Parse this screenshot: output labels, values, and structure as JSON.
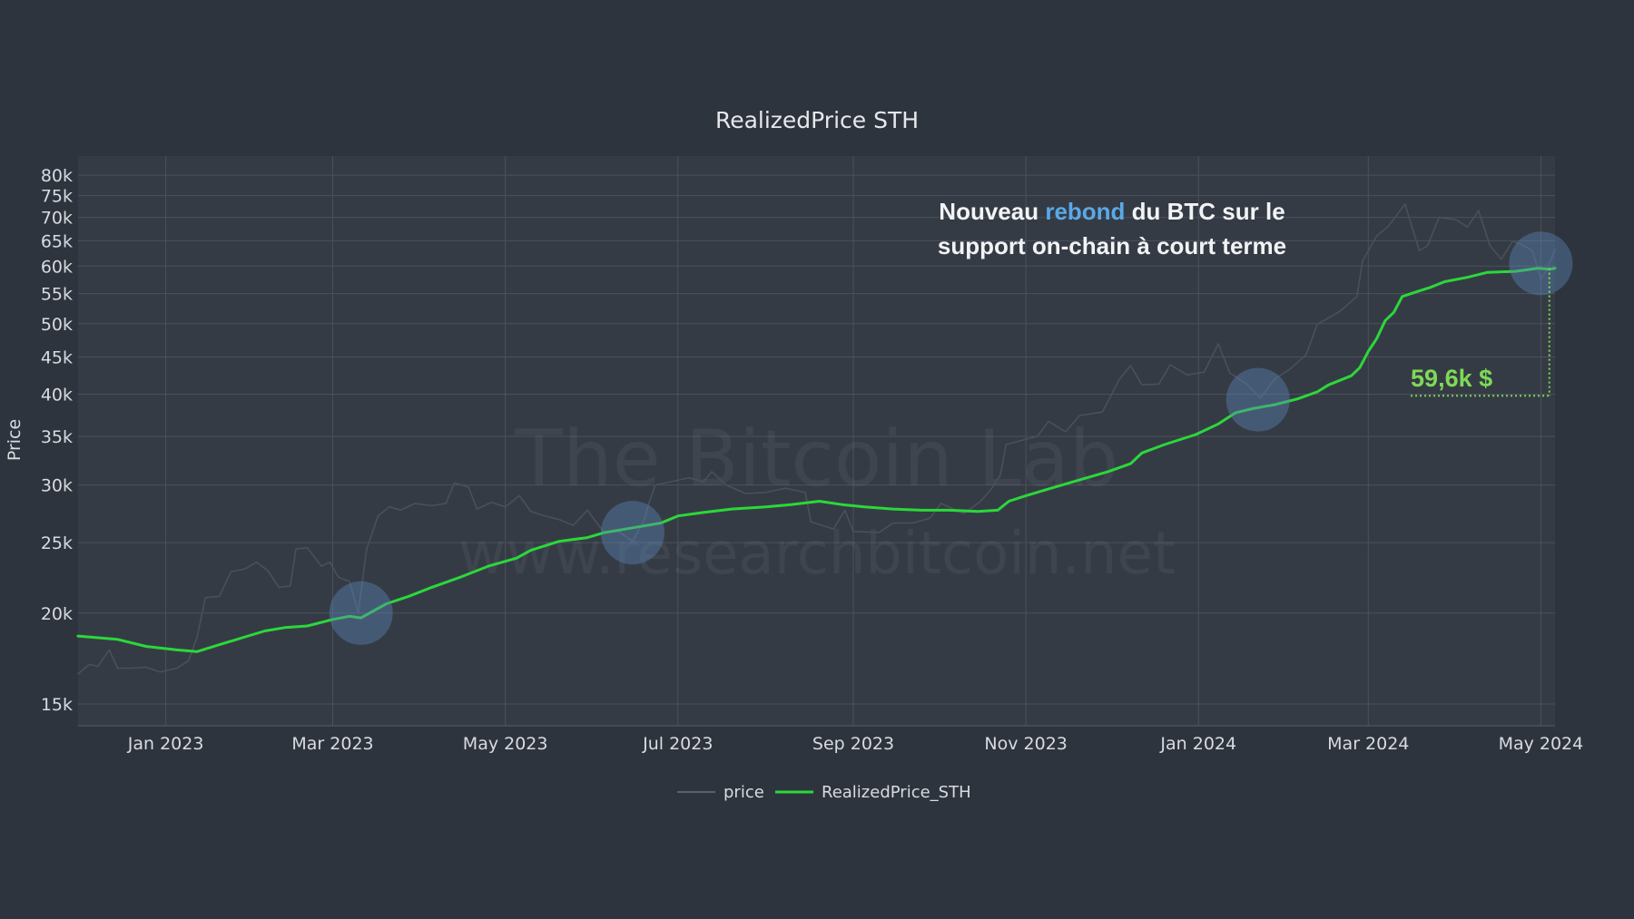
{
  "chart_data": {
    "type": "line",
    "title": "RealizedPrice STH",
    "ylabel": "Price",
    "xlabel": "",
    "yscale": "log",
    "ylim": [
      14000,
      85000
    ],
    "xlim": [
      "2022-12-01",
      "2024-05-06"
    ],
    "x_ticks": [
      {
        "date": "2023-01-01",
        "label": "Jan 2023"
      },
      {
        "date": "2023-03-01",
        "label": "Mar 2023"
      },
      {
        "date": "2023-05-01",
        "label": "May 2023"
      },
      {
        "date": "2023-07-01",
        "label": "Jul 2023"
      },
      {
        "date": "2023-09-01",
        "label": "Sep 2023"
      },
      {
        "date": "2023-11-01",
        "label": "Nov 2023"
      },
      {
        "date": "2024-01-01",
        "label": "Jan 2024"
      },
      {
        "date": "2024-03-01",
        "label": "Mar 2024"
      },
      {
        "date": "2024-05-01",
        "label": "May 2024"
      }
    ],
    "y_ticks": [
      {
        "value": 15000,
        "label": "15k"
      },
      {
        "value": 20000,
        "label": "20k"
      },
      {
        "value": 25000,
        "label": "25k"
      },
      {
        "value": 30000,
        "label": "30k"
      },
      {
        "value": 35000,
        "label": "35k"
      },
      {
        "value": 40000,
        "label": "40k"
      },
      {
        "value": 45000,
        "label": "45k"
      },
      {
        "value": 50000,
        "label": "50k"
      },
      {
        "value": 55000,
        "label": "55k"
      },
      {
        "value": 60000,
        "label": "60k"
      },
      {
        "value": 65000,
        "label": "65k"
      },
      {
        "value": 70000,
        "label": "70k"
      },
      {
        "value": 75000,
        "label": "75k"
      },
      {
        "value": 80000,
        "label": "80k"
      }
    ],
    "grid": true,
    "legend_position": "bottom-center",
    "series": [
      {
        "name": "price",
        "color": "#4a505a",
        "points": [
          [
            "2022-12-01",
            16500
          ],
          [
            "2022-12-05",
            17000
          ],
          [
            "2022-12-08",
            16900
          ],
          [
            "2022-12-12",
            17800
          ],
          [
            "2022-12-15",
            16800
          ],
          [
            "2022-12-20",
            16800
          ],
          [
            "2022-12-25",
            16850
          ],
          [
            "2022-12-30",
            16600
          ],
          [
            "2023-01-05",
            16800
          ],
          [
            "2023-01-09",
            17200
          ],
          [
            "2023-01-12",
            18500
          ],
          [
            "2023-01-15",
            21000
          ],
          [
            "2023-01-20",
            21100
          ],
          [
            "2023-01-24",
            22800
          ],
          [
            "2023-01-29",
            23000
          ],
          [
            "2023-02-02",
            23500
          ],
          [
            "2023-02-06",
            22900
          ],
          [
            "2023-02-10",
            21700
          ],
          [
            "2023-02-14",
            21800
          ],
          [
            "2023-02-16",
            24500
          ],
          [
            "2023-02-20",
            24600
          ],
          [
            "2023-02-25",
            23200
          ],
          [
            "2023-02-28",
            23500
          ],
          [
            "2023-03-03",
            22400
          ],
          [
            "2023-03-07",
            22100
          ],
          [
            "2023-03-10",
            20000
          ],
          [
            "2023-03-13",
            24500
          ],
          [
            "2023-03-17",
            27200
          ],
          [
            "2023-03-21",
            28000
          ],
          [
            "2023-03-25",
            27700
          ],
          [
            "2023-03-30",
            28300
          ],
          [
            "2023-04-05",
            28100
          ],
          [
            "2023-04-10",
            28300
          ],
          [
            "2023-04-13",
            30200
          ],
          [
            "2023-04-18",
            29800
          ],
          [
            "2023-04-21",
            27800
          ],
          [
            "2023-04-26",
            28400
          ],
          [
            "2023-05-01",
            28000
          ],
          [
            "2023-05-06",
            29000
          ],
          [
            "2023-05-10",
            27600
          ],
          [
            "2023-05-15",
            27200
          ],
          [
            "2023-05-20",
            26900
          ],
          [
            "2023-05-25",
            26400
          ],
          [
            "2023-05-30",
            27700
          ],
          [
            "2023-06-05",
            25800
          ],
          [
            "2023-06-10",
            25900
          ],
          [
            "2023-06-15",
            25100
          ],
          [
            "2023-06-19",
            26800
          ],
          [
            "2023-06-21",
            28500
          ],
          [
            "2023-06-23",
            30000
          ],
          [
            "2023-06-30",
            30400
          ],
          [
            "2023-07-05",
            30700
          ],
          [
            "2023-07-10",
            30300
          ],
          [
            "2023-07-13",
            31300
          ],
          [
            "2023-07-18",
            30000
          ],
          [
            "2023-07-25",
            29200
          ],
          [
            "2023-08-01",
            29300
          ],
          [
            "2023-08-08",
            29700
          ],
          [
            "2023-08-15",
            29300
          ],
          [
            "2023-08-17",
            26700
          ],
          [
            "2023-08-25",
            26100
          ],
          [
            "2023-08-29",
            27700
          ],
          [
            "2023-09-01",
            25900
          ],
          [
            "2023-09-10",
            25800
          ],
          [
            "2023-09-15",
            26600
          ],
          [
            "2023-09-22",
            26600
          ],
          [
            "2023-09-28",
            27000
          ],
          [
            "2023-10-02",
            28300
          ],
          [
            "2023-10-10",
            27400
          ],
          [
            "2023-10-16",
            28500
          ],
          [
            "2023-10-20",
            29700
          ],
          [
            "2023-10-23",
            31000
          ],
          [
            "2023-10-25",
            34100
          ],
          [
            "2023-10-31",
            34600
          ],
          [
            "2023-11-05",
            35000
          ],
          [
            "2023-11-09",
            36700
          ],
          [
            "2023-11-15",
            35500
          ],
          [
            "2023-11-20",
            37400
          ],
          [
            "2023-11-28",
            37800
          ],
          [
            "2023-12-04",
            41900
          ],
          [
            "2023-12-08",
            43800
          ],
          [
            "2023-12-12",
            41200
          ],
          [
            "2023-12-18",
            41300
          ],
          [
            "2023-12-22",
            43900
          ],
          [
            "2023-12-28",
            42500
          ],
          [
            "2024-01-03",
            42900
          ],
          [
            "2024-01-08",
            46900
          ],
          [
            "2024-01-12",
            42800
          ],
          [
            "2024-01-18",
            41300
          ],
          [
            "2024-01-23",
            39500
          ],
          [
            "2024-01-28",
            42000
          ],
          [
            "2024-02-02",
            43200
          ],
          [
            "2024-02-08",
            45300
          ],
          [
            "2024-02-12",
            49900
          ],
          [
            "2024-02-20",
            52000
          ],
          [
            "2024-02-26",
            54500
          ],
          [
            "2024-02-28",
            61000
          ],
          [
            "2024-03-04",
            66000
          ],
          [
            "2024-03-08",
            68000
          ],
          [
            "2024-03-14",
            73000
          ],
          [
            "2024-03-19",
            63000
          ],
          [
            "2024-03-22",
            64000
          ],
          [
            "2024-03-26",
            70000
          ],
          [
            "2024-04-01",
            69500
          ],
          [
            "2024-04-05",
            67900
          ],
          [
            "2024-04-09",
            71500
          ],
          [
            "2024-04-13",
            64000
          ],
          [
            "2024-04-17",
            61300
          ],
          [
            "2024-04-21",
            64900
          ],
          [
            "2024-04-24",
            64300
          ],
          [
            "2024-04-28",
            63000
          ],
          [
            "2024-05-01",
            57500
          ],
          [
            "2024-05-03",
            59200
          ],
          [
            "2024-05-06",
            63200
          ]
        ]
      },
      {
        "name": "RealizedPrice_STH",
        "color": "#2bd83a",
        "points": [
          [
            "2022-12-01",
            18600
          ],
          [
            "2022-12-15",
            18400
          ],
          [
            "2022-12-25",
            18000
          ],
          [
            "2023-01-05",
            17800
          ],
          [
            "2023-01-12",
            17700
          ],
          [
            "2023-01-20",
            18100
          ],
          [
            "2023-01-28",
            18500
          ],
          [
            "2023-02-05",
            18900
          ],
          [
            "2023-02-12",
            19100
          ],
          [
            "2023-02-20",
            19200
          ],
          [
            "2023-03-01",
            19600
          ],
          [
            "2023-03-07",
            19800
          ],
          [
            "2023-03-11",
            19700
          ],
          [
            "2023-03-14",
            20000
          ],
          [
            "2023-03-20",
            20600
          ],
          [
            "2023-03-28",
            21100
          ],
          [
            "2023-04-05",
            21700
          ],
          [
            "2023-04-15",
            22400
          ],
          [
            "2023-04-25",
            23200
          ],
          [
            "2023-05-05",
            23800
          ],
          [
            "2023-05-10",
            24400
          ],
          [
            "2023-05-20",
            25100
          ],
          [
            "2023-05-30",
            25400
          ],
          [
            "2023-06-05",
            25800
          ],
          [
            "2023-06-15",
            26200
          ],
          [
            "2023-06-25",
            26600
          ],
          [
            "2023-07-01",
            27200
          ],
          [
            "2023-07-10",
            27500
          ],
          [
            "2023-07-20",
            27800
          ],
          [
            "2023-08-01",
            28000
          ],
          [
            "2023-08-10",
            28200
          ],
          [
            "2023-08-20",
            28500
          ],
          [
            "2023-08-28",
            28200
          ],
          [
            "2023-09-05",
            28000
          ],
          [
            "2023-09-15",
            27800
          ],
          [
            "2023-09-25",
            27700
          ],
          [
            "2023-10-05",
            27700
          ],
          [
            "2023-10-15",
            27600
          ],
          [
            "2023-10-22",
            27700
          ],
          [
            "2023-10-26",
            28500
          ],
          [
            "2023-11-01",
            29000
          ],
          [
            "2023-11-10",
            29700
          ],
          [
            "2023-11-20",
            30500
          ],
          [
            "2023-11-30",
            31300
          ],
          [
            "2023-12-08",
            32100
          ],
          [
            "2023-12-12",
            33200
          ],
          [
            "2023-12-20",
            34100
          ],
          [
            "2023-12-31",
            35200
          ],
          [
            "2024-01-08",
            36400
          ],
          [
            "2024-01-14",
            37700
          ],
          [
            "2024-01-20",
            38200
          ],
          [
            "2024-01-28",
            38700
          ],
          [
            "2024-02-05",
            39400
          ],
          [
            "2024-02-12",
            40300
          ],
          [
            "2024-02-16",
            41200
          ],
          [
            "2024-02-24",
            42400
          ],
          [
            "2024-02-27",
            43500
          ],
          [
            "2024-03-01",
            45800
          ],
          [
            "2024-03-04",
            47700
          ],
          [
            "2024-03-07",
            50500
          ],
          [
            "2024-03-10",
            51800
          ],
          [
            "2024-03-13",
            54500
          ],
          [
            "2024-03-18",
            55300
          ],
          [
            "2024-03-23",
            56100
          ],
          [
            "2024-03-28",
            57100
          ],
          [
            "2024-04-05",
            57900
          ],
          [
            "2024-04-12",
            58800
          ],
          [
            "2024-04-22",
            59000
          ],
          [
            "2024-04-30",
            59600
          ],
          [
            "2024-05-04",
            59400
          ],
          [
            "2024-05-06",
            59600
          ]
        ]
      }
    ],
    "highlights": [
      {
        "date": "2023-03-11",
        "value": 20000
      },
      {
        "date": "2023-06-15",
        "value": 25800
      },
      {
        "date": "2024-01-22",
        "value": 39300
      },
      {
        "date": "2024-05-01",
        "value": 60500
      }
    ],
    "annotation": {
      "line1_pre": "Nouveau ",
      "line1_highlight": "rebond",
      "line1_post": " du BTC sur le",
      "line2": "support on-chain à court terme"
    },
    "value_callout": {
      "label": "59,6k $",
      "date": "2024-05-04",
      "value": 59600,
      "baseline_value": 39800,
      "start_date": "2024-03-16"
    },
    "watermark": {
      "line1": "The Bitcoin Lab",
      "line2": "www.researchbitcoin.net"
    }
  }
}
